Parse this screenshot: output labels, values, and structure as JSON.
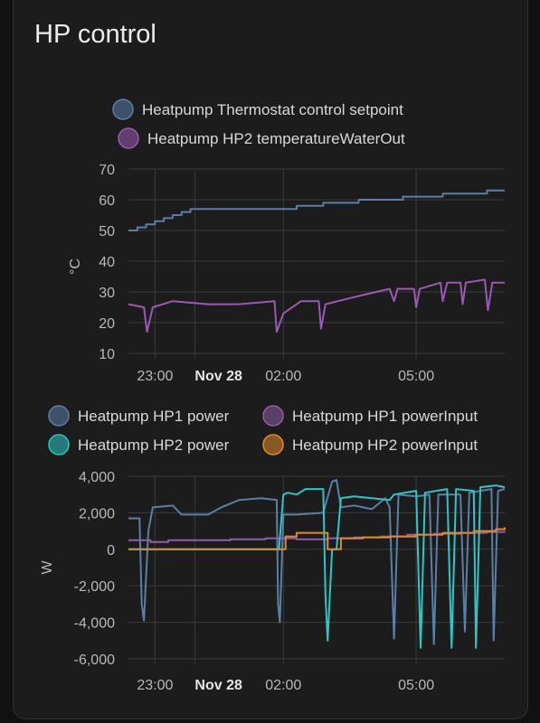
{
  "card": {
    "title": "HP control"
  },
  "colors": {
    "setpoint": "#5a7fa8",
    "water_out": "#9b59b6",
    "hp1_power": "#5a7fa8",
    "hp1_input": "#8e5ea8",
    "hp2_power": "#2ec6c6",
    "hp2_input": "#e58a2a",
    "grid": "#3a3a3a",
    "axis_text": "#b8b8b8"
  },
  "chart_data": [
    {
      "type": "line",
      "ylabel": "°C",
      "ylim": [
        10,
        70
      ],
      "yticks": [
        "70",
        "60",
        "50",
        "40",
        "30",
        "20",
        "10"
      ],
      "xlim": [
        -1.5,
        7.0
      ],
      "xticks": [
        {
          "x": -0.9,
          "label": "23:00",
          "bold": false
        },
        {
          "x": 0.0,
          "label": "Nov 28",
          "bold": true
        },
        {
          "x": 2.0,
          "label": "02:00",
          "bold": false
        },
        {
          "x": 5.0,
          "label": "05:00",
          "bold": false
        }
      ],
      "legend": "top",
      "series": [
        {
          "name": "Heatpump Thermostat control setpoint",
          "color_key": "setpoint",
          "step": true,
          "points": [
            [
              -1.5,
              50
            ],
            [
              -1.3,
              51
            ],
            [
              -1.1,
              52
            ],
            [
              -0.9,
              53
            ],
            [
              -0.7,
              54
            ],
            [
              -0.5,
              55
            ],
            [
              -0.3,
              56
            ],
            [
              -0.1,
              57
            ],
            [
              0.5,
              57
            ],
            [
              2.3,
              58
            ],
            [
              2.9,
              59
            ],
            [
              3.7,
              60
            ],
            [
              4.7,
              61
            ],
            [
              5.6,
              62
            ],
            [
              6.6,
              63
            ],
            [
              7.0,
              63
            ]
          ]
        },
        {
          "name": "Heatpump HP2 temperatureWaterOut",
          "color_key": "water_out",
          "step": false,
          "points": [
            [
              -1.5,
              26
            ],
            [
              -1.15,
              25
            ],
            [
              -1.08,
              17
            ],
            [
              -0.95,
              25
            ],
            [
              -0.5,
              27
            ],
            [
              0.3,
              26
            ],
            [
              1.0,
              26
            ],
            [
              1.8,
              27
            ],
            [
              1.85,
              17
            ],
            [
              2.0,
              23
            ],
            [
              2.4,
              27
            ],
            [
              2.8,
              27
            ],
            [
              2.85,
              18
            ],
            [
              2.95,
              26
            ],
            [
              3.8,
              29
            ],
            [
              4.4,
              31
            ],
            [
              4.5,
              27
            ],
            [
              4.58,
              31
            ],
            [
              4.95,
              31
            ],
            [
              5.0,
              25
            ],
            [
              5.08,
              31
            ],
            [
              5.55,
              33
            ],
            [
              5.6,
              27
            ],
            [
              5.7,
              33
            ],
            [
              6.0,
              33
            ],
            [
              6.05,
              26
            ],
            [
              6.12,
              33
            ],
            [
              6.55,
              34
            ],
            [
              6.62,
              24
            ],
            [
              6.72,
              33
            ],
            [
              7.0,
              33
            ]
          ]
        }
      ]
    },
    {
      "type": "line",
      "ylabel": "W",
      "ylim": [
        -6000,
        4000
      ],
      "yticks": [
        "4,000",
        "2,000",
        "0",
        "-2,000",
        "-4,000",
        "-6,000"
      ],
      "xlim": [
        -1.5,
        7.0
      ],
      "xticks": [
        {
          "x": -0.9,
          "label": "23:00",
          "bold": false
        },
        {
          "x": 0.0,
          "label": "Nov 28",
          "bold": true
        },
        {
          "x": 2.0,
          "label": "02:00",
          "bold": false
        },
        {
          "x": 5.0,
          "label": "05:00",
          "bold": false
        }
      ],
      "legend": "top",
      "series": [
        {
          "name": "Heatpump HP1 power",
          "color_key": "hp1_power",
          "step": false,
          "points": [
            [
              -1.5,
              1700
            ],
            [
              -1.25,
              1700
            ],
            [
              -1.2,
              -3000
            ],
            [
              -1.15,
              -3900
            ],
            [
              -1.05,
              1000
            ],
            [
              -0.95,
              2300
            ],
            [
              -0.5,
              2400
            ],
            [
              -0.3,
              1900
            ],
            [
              0.3,
              1900
            ],
            [
              0.6,
              2300
            ],
            [
              1.0,
              2700
            ],
            [
              1.5,
              2800
            ],
            [
              1.85,
              2700
            ],
            [
              1.88,
              -3000
            ],
            [
              1.92,
              -4000
            ],
            [
              2.0,
              1900
            ],
            [
              2.3,
              1900
            ],
            [
              2.9,
              2000
            ],
            [
              3.1,
              3700
            ],
            [
              3.2,
              3800
            ],
            [
              3.3,
              2300
            ],
            [
              3.6,
              2400
            ],
            [
              4.0,
              2200
            ],
            [
              4.3,
              2800
            ],
            [
              4.4,
              2300
            ],
            [
              4.5,
              -4900
            ],
            [
              4.6,
              3000
            ],
            [
              5.0,
              2900
            ],
            [
              5.3,
              3000
            ],
            [
              5.4,
              -5200
            ],
            [
              5.5,
              3000
            ],
            [
              6.0,
              3000
            ],
            [
              6.1,
              -4500
            ],
            [
              6.2,
              3100
            ],
            [
              6.7,
              3300
            ],
            [
              6.75,
              -5000
            ],
            [
              6.85,
              3200
            ],
            [
              7.0,
              3300
            ]
          ]
        },
        {
          "name": "Heatpump HP1 powerInput",
          "color_key": "hp1_input",
          "step": true,
          "points": [
            [
              -1.5,
              500
            ],
            [
              -1.0,
              400
            ],
            [
              -0.6,
              500
            ],
            [
              0.2,
              500
            ],
            [
              0.8,
              550
            ],
            [
              1.6,
              600
            ],
            [
              2.3,
              550
            ],
            [
              3.0,
              600
            ],
            [
              3.6,
              650
            ],
            [
              4.2,
              700
            ],
            [
              4.8,
              800
            ],
            [
              5.4,
              850
            ],
            [
              6.0,
              900
            ],
            [
              6.6,
              950
            ],
            [
              7.0,
              1000
            ]
          ]
        },
        {
          "name": "Heatpump HP2 power",
          "color_key": "hp2_power",
          "step": false,
          "points": [
            [
              -1.5,
              0
            ],
            [
              1.9,
              0
            ],
            [
              2.0,
              3000
            ],
            [
              2.1,
              3100
            ],
            [
              2.3,
              3000
            ],
            [
              2.5,
              3300
            ],
            [
              2.9,
              3300
            ],
            [
              2.95,
              -2500
            ],
            [
              3.0,
              -5000
            ],
            [
              3.1,
              0
            ],
            [
              3.2,
              0
            ],
            [
              3.3,
              2800
            ],
            [
              3.6,
              2900
            ],
            [
              4.4,
              2700
            ],
            [
              4.5,
              3000
            ],
            [
              5.0,
              3200
            ],
            [
              5.1,
              -5400
            ],
            [
              5.2,
              3100
            ],
            [
              5.7,
              3300
            ],
            [
              5.8,
              -5400
            ],
            [
              5.9,
              3300
            ],
            [
              6.3,
              3200
            ],
            [
              6.35,
              -5400
            ],
            [
              6.45,
              3400
            ],
            [
              6.8,
              3500
            ],
            [
              7.0,
              3400
            ]
          ]
        },
        {
          "name": "Heatpump HP2 powerInput",
          "color_key": "hp2_input",
          "step": true,
          "points": [
            [
              -1.5,
              0
            ],
            [
              2.0,
              0
            ],
            [
              2.05,
              700
            ],
            [
              2.3,
              900
            ],
            [
              2.9,
              900
            ],
            [
              3.0,
              0
            ],
            [
              3.2,
              0
            ],
            [
              3.3,
              600
            ],
            [
              3.8,
              650
            ],
            [
              4.4,
              700
            ],
            [
              5.0,
              800
            ],
            [
              5.6,
              900
            ],
            [
              6.3,
              1000
            ],
            [
              6.8,
              1100
            ],
            [
              7.0,
              1200
            ]
          ]
        }
      ]
    }
  ]
}
